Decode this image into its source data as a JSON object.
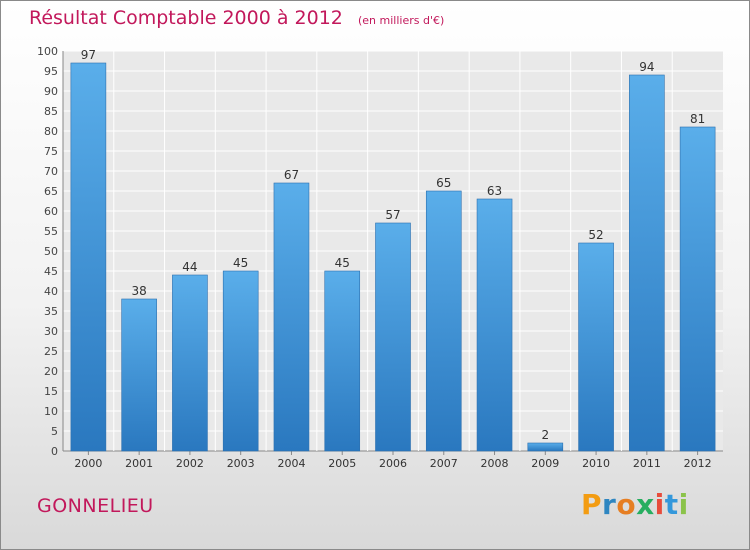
{
  "header": {
    "title": "Résultat Comptable 2000 à 2012",
    "subtitle": "(en milliers d'€)"
  },
  "footer": {
    "commune": "GONNELIEU",
    "brand": {
      "letters": [
        "P",
        "r",
        "o",
        "x",
        "i",
        "t",
        "i"
      ],
      "colors": [
        "#f39c12",
        "#2e86c1",
        "#e67e22",
        "#27ae60",
        "#e74c3c",
        "#3498db",
        "#8bc34a"
      ]
    }
  },
  "chart_data": {
    "type": "bar",
    "title": "Résultat Comptable 2000 à 2012",
    "subtitle": "(en milliers d'€)",
    "categories": [
      "2000",
      "2001",
      "2002",
      "2003",
      "2004",
      "2005",
      "2006",
      "2007",
      "2008",
      "2009",
      "2010",
      "2011",
      "2012"
    ],
    "values": [
      97,
      38,
      44,
      45,
      67,
      45,
      57,
      65,
      63,
      2,
      52,
      94,
      81
    ],
    "ylim": [
      0,
      100
    ],
    "ytick_step": 5,
    "grid": true,
    "xlabel": "",
    "ylabel": "",
    "bar_color": "#3d8fd8"
  }
}
